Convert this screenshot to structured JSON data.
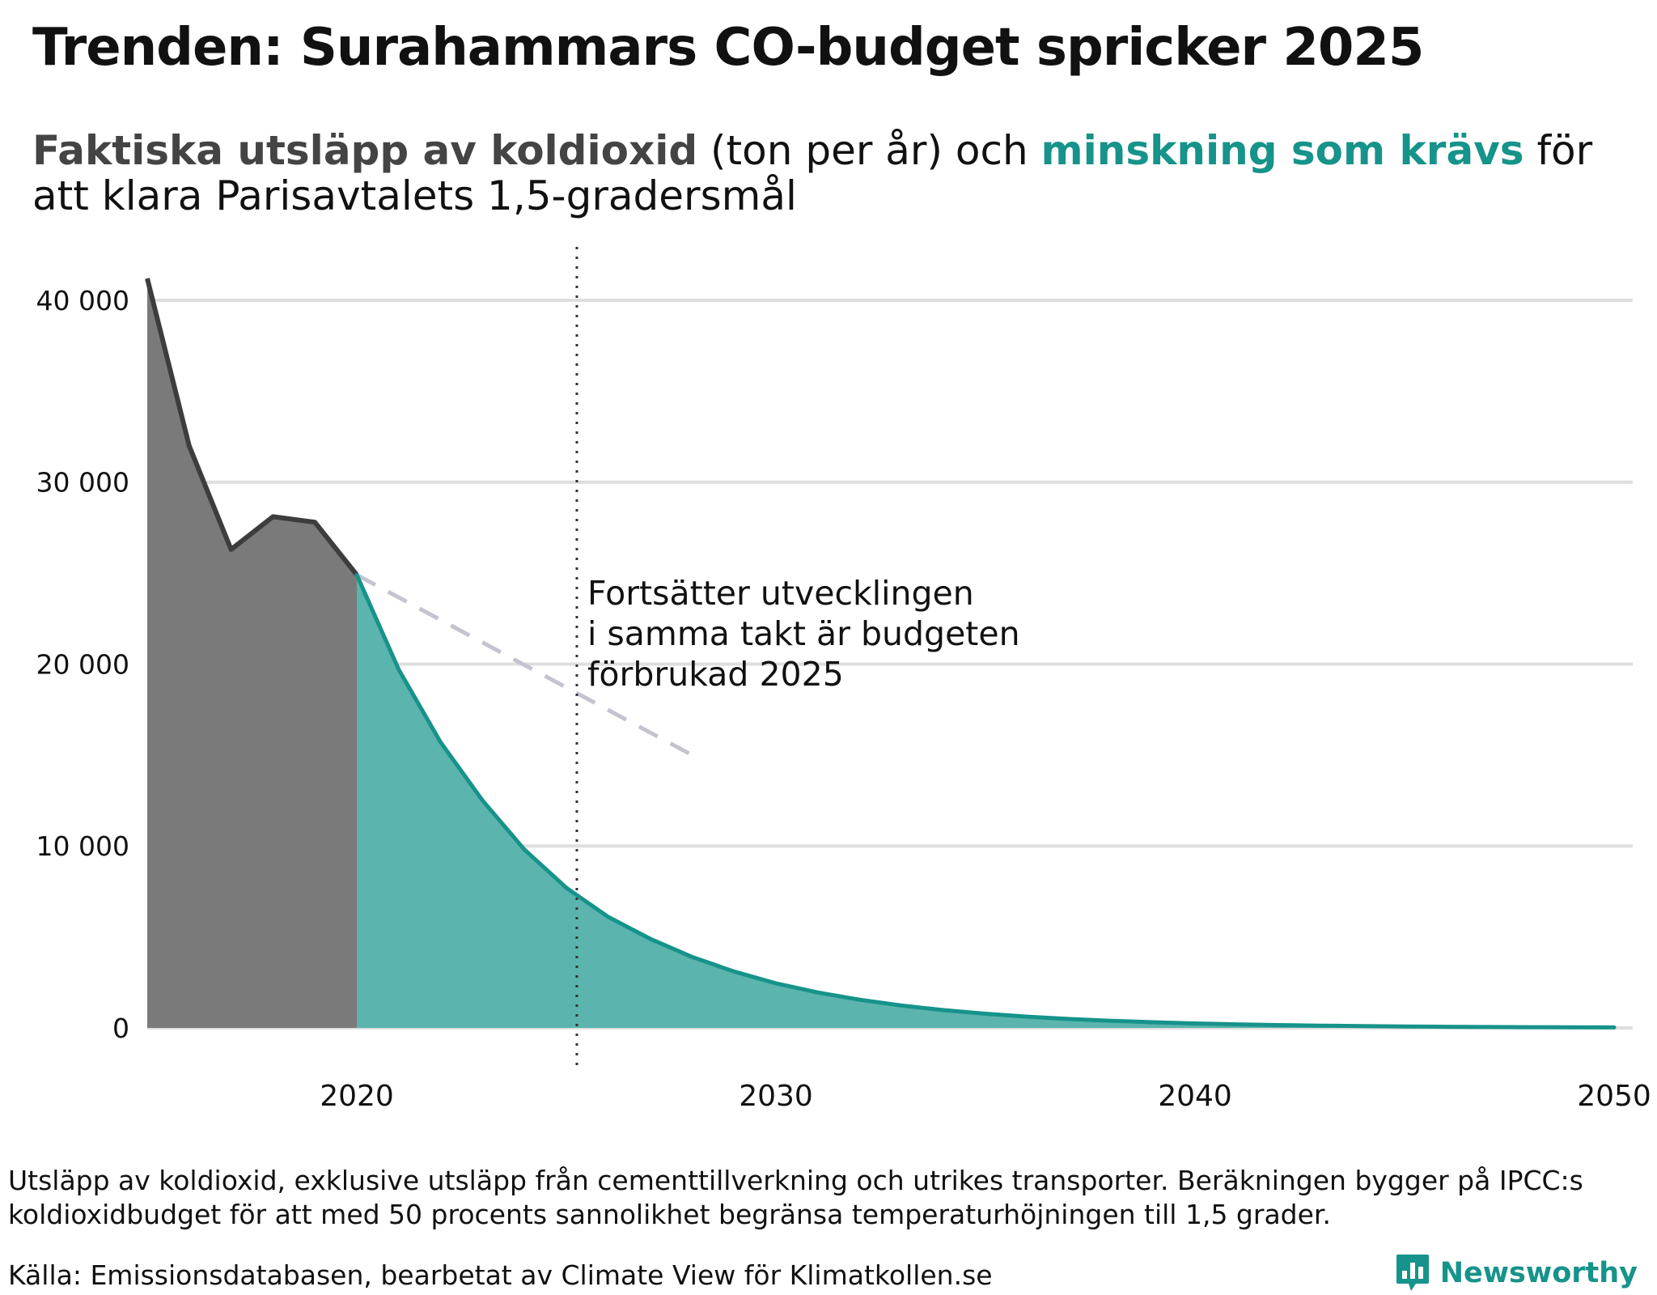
{
  "header": {
    "title": "Trenden: Surahammars CO-budget spricker 2025",
    "subtitle_actual": "Faktiska utsläpp av koldioxid",
    "subtitle_mid": " (ton per år) och ",
    "subtitle_required": "minskning som krävs",
    "subtitle_end": " för att klara Parisavtalets 1,5-gradersmål"
  },
  "colors": {
    "actual_line": "#3d3d3d",
    "actual_fill": "#7a7a7a",
    "required_line": "#16938a",
    "required_fill": "#5bb4ad",
    "trend_line": "#c4c4d0",
    "grid": "#dedede",
    "accent": "#16938a"
  },
  "chart_data": {
    "type": "area",
    "ylim": [
      0,
      42000
    ],
    "xlim": [
      2015,
      2050
    ],
    "grid": true,
    "yticks": [
      0,
      10000,
      20000,
      30000,
      40000
    ],
    "ytick_labels": [
      "0",
      "10 000",
      "20 000",
      "30 000",
      "40 000"
    ],
    "xticks": [
      2020,
      2030,
      2040,
      2050
    ],
    "xtick_labels": [
      "2020",
      "2030",
      "2040",
      "2050"
    ],
    "series": [
      {
        "name": "Faktiska utsläpp av koldioxid",
        "style": "area",
        "x": [
          2015,
          2016,
          2017,
          2018,
          2019,
          2020
        ],
        "values": [
          41200,
          32000,
          26300,
          28100,
          27800,
          24900
        ]
      },
      {
        "name": "minskning som krävs",
        "style": "area",
        "x": [
          2020,
          2021,
          2022,
          2023,
          2024,
          2025,
          2026,
          2027,
          2028,
          2029,
          2030,
          2031,
          2032,
          2033,
          2034,
          2035,
          2036,
          2037,
          2038,
          2039,
          2040,
          2041,
          2042,
          2043,
          2044,
          2045,
          2046,
          2047,
          2048,
          2049,
          2050
        ],
        "values": [
          24900,
          19700,
          15700,
          12500,
          9800,
          7700,
          6100,
          4900,
          3900,
          3100,
          2450,
          1950,
          1550,
          1230,
          980,
          780,
          620,
          490,
          390,
          310,
          245,
          195,
          155,
          123,
          98,
          78,
          62,
          49,
          39,
          31,
          25
        ]
      },
      {
        "name": "trend",
        "style": "dashed",
        "x": [
          2020,
          2028
        ],
        "values": [
          24900,
          15000
        ]
      }
    ],
    "marker_year": 2025.25,
    "annotation": [
      "Fortsätter utvecklingen",
      "i samma takt är budgeten",
      "förbrukad 2025"
    ]
  },
  "footer": {
    "note": "Utsläpp av koldioxid, exklusive utsläpp från cementtillverkning och utrikes transporter. Beräkningen bygger på IPCC:s koldioxidbudget för att med 50 procents sannolikhet begränsa temperaturhöjningen till 1,5 grader.",
    "source": "Källa: Emissionsdatabasen, bearbetat av Climate View för Klimatkollen.se",
    "brand": "Newsworthy",
    "brand_icon": "bar-chart-bubble-icon"
  }
}
